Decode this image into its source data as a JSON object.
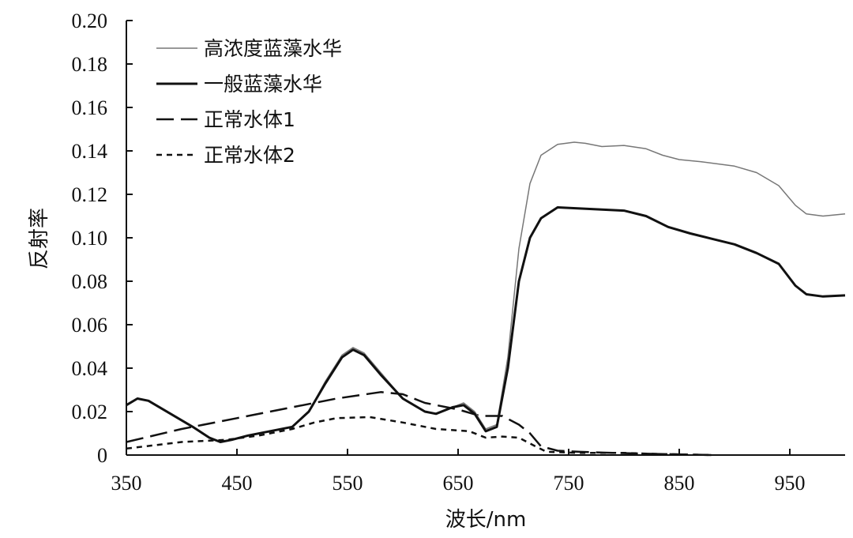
{
  "chart_data": {
    "type": "line",
    "title": "",
    "xlabel": "波长/nm",
    "ylabel": "反射率",
    "xlim": [
      350,
      1000
    ],
    "ylim": [
      0,
      0.2
    ],
    "x_ticks": [
      "350",
      "450",
      "550",
      "650",
      "750",
      "850",
      "950"
    ],
    "y_ticks": [
      "0",
      "0.02",
      "0.04",
      "0.06",
      "0.08",
      "0.10",
      "0.12",
      "0.14",
      "0.16",
      "0.18",
      "0.20"
    ],
    "grid": false,
    "legend_position": "top-left",
    "series": [
      {
        "name": "高浓度蓝藻水华",
        "style": "thin-solid",
        "color": "#777777",
        "points": [
          [
            350,
            0.023
          ],
          [
            360,
            0.026
          ],
          [
            370,
            0.025
          ],
          [
            390,
            0.019
          ],
          [
            410,
            0.013
          ],
          [
            425,
            0.008
          ],
          [
            435,
            0.006
          ],
          [
            445,
            0.007
          ],
          [
            460,
            0.009
          ],
          [
            480,
            0.011
          ],
          [
            500,
            0.013
          ],
          [
            515,
            0.02
          ],
          [
            530,
            0.034
          ],
          [
            545,
            0.046
          ],
          [
            555,
            0.0495
          ],
          [
            565,
            0.047
          ],
          [
            580,
            0.038
          ],
          [
            600,
            0.026
          ],
          [
            620,
            0.02
          ],
          [
            630,
            0.019
          ],
          [
            645,
            0.022
          ],
          [
            655,
            0.024
          ],
          [
            665,
            0.02
          ],
          [
            675,
            0.012
          ],
          [
            685,
            0.014
          ],
          [
            695,
            0.045
          ],
          [
            705,
            0.095
          ],
          [
            715,
            0.125
          ],
          [
            725,
            0.138
          ],
          [
            740,
            0.143
          ],
          [
            755,
            0.144
          ],
          [
            765,
            0.1435
          ],
          [
            780,
            0.142
          ],
          [
            800,
            0.1425
          ],
          [
            820,
            0.141
          ],
          [
            835,
            0.138
          ],
          [
            850,
            0.136
          ],
          [
            870,
            0.135
          ],
          [
            900,
            0.133
          ],
          [
            920,
            0.13
          ],
          [
            940,
            0.124
          ],
          [
            955,
            0.115
          ],
          [
            965,
            0.111
          ],
          [
            980,
            0.11
          ],
          [
            1000,
            0.111
          ]
        ]
      },
      {
        "name": "一般蓝藻水华",
        "style": "thick-solid",
        "color": "#111111",
        "points": [
          [
            350,
            0.023
          ],
          [
            360,
            0.026
          ],
          [
            370,
            0.025
          ],
          [
            390,
            0.019
          ],
          [
            410,
            0.013
          ],
          [
            425,
            0.008
          ],
          [
            435,
            0.006
          ],
          [
            445,
            0.007
          ],
          [
            460,
            0.009
          ],
          [
            480,
            0.011
          ],
          [
            500,
            0.013
          ],
          [
            515,
            0.02
          ],
          [
            530,
            0.033
          ],
          [
            545,
            0.045
          ],
          [
            555,
            0.0485
          ],
          [
            565,
            0.046
          ],
          [
            580,
            0.037
          ],
          [
            600,
            0.026
          ],
          [
            620,
            0.02
          ],
          [
            630,
            0.019
          ],
          [
            645,
            0.022
          ],
          [
            655,
            0.023
          ],
          [
            665,
            0.019
          ],
          [
            675,
            0.011
          ],
          [
            685,
            0.013
          ],
          [
            695,
            0.04
          ],
          [
            705,
            0.08
          ],
          [
            715,
            0.1
          ],
          [
            725,
            0.109
          ],
          [
            740,
            0.114
          ],
          [
            760,
            0.1135
          ],
          [
            780,
            0.113
          ],
          [
            800,
            0.1125
          ],
          [
            820,
            0.11
          ],
          [
            840,
            0.105
          ],
          [
            860,
            0.102
          ],
          [
            880,
            0.0995
          ],
          [
            900,
            0.097
          ],
          [
            920,
            0.093
          ],
          [
            940,
            0.088
          ],
          [
            955,
            0.078
          ],
          [
            965,
            0.074
          ],
          [
            980,
            0.073
          ],
          [
            1000,
            0.0735
          ]
        ]
      },
      {
        "name": "正常水体1",
        "style": "long-dash",
        "color": "#111111",
        "points": [
          [
            350,
            0.006
          ],
          [
            400,
            0.012
          ],
          [
            450,
            0.017
          ],
          [
            500,
            0.022
          ],
          [
            540,
            0.026
          ],
          [
            580,
            0.029
          ],
          [
            600,
            0.028
          ],
          [
            620,
            0.024
          ],
          [
            650,
            0.021
          ],
          [
            670,
            0.018
          ],
          [
            690,
            0.018
          ],
          [
            705,
            0.014
          ],
          [
            715,
            0.01
          ],
          [
            725,
            0.004
          ],
          [
            740,
            0.002
          ],
          [
            760,
            0.0015
          ],
          [
            790,
            0.001
          ],
          [
            830,
            0.0005
          ],
          [
            880,
            0
          ]
        ]
      },
      {
        "name": "正常水体2",
        "style": "short-dash",
        "color": "#111111",
        "points": [
          [
            350,
            0.003
          ],
          [
            400,
            0.006
          ],
          [
            440,
            0.007
          ],
          [
            470,
            0.009
          ],
          [
            500,
            0.012
          ],
          [
            520,
            0.015
          ],
          [
            540,
            0.017
          ],
          [
            570,
            0.0175
          ],
          [
            600,
            0.015
          ],
          [
            630,
            0.012
          ],
          [
            660,
            0.011
          ],
          [
            675,
            0.008
          ],
          [
            690,
            0.0085
          ],
          [
            705,
            0.008
          ],
          [
            720,
            0.004
          ],
          [
            730,
            0.0015
          ],
          [
            760,
            0.001
          ],
          [
            800,
            0.001
          ],
          [
            830,
            0.0005
          ],
          [
            880,
            0
          ]
        ]
      }
    ]
  }
}
